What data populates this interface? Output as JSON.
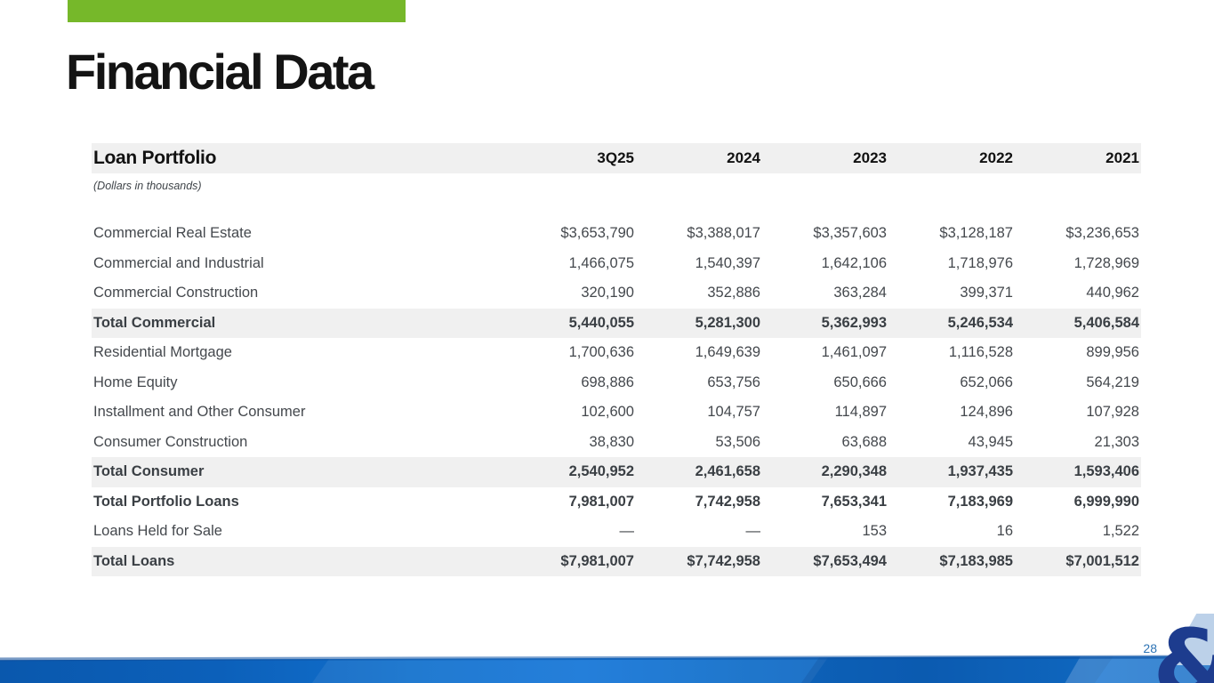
{
  "slide": {
    "title": "Financial Data",
    "page_number": "28",
    "ampersand": "&",
    "accent_green": "#76b82a",
    "footer_blue": "#1170cd",
    "logo_navy": "#1d3c8e",
    "page_number_blue": "#2e74b5"
  },
  "table": {
    "title": "Loan Portfolio",
    "subtitle": "(Dollars in thousands)",
    "columns": [
      "3Q25",
      "2024",
      "2023",
      "2022",
      "2021"
    ],
    "rows": [
      {
        "label": "Commercial Real Estate",
        "values": [
          "$3,653,790",
          "$3,388,017",
          "$3,357,603",
          "$3,128,187",
          "$3,236,653"
        ],
        "bold": false,
        "shaded": false
      },
      {
        "label": "Commercial and Industrial",
        "values": [
          "1,466,075",
          "1,540,397",
          "1,642,106",
          "1,718,976",
          "1,728,969"
        ],
        "bold": false,
        "shaded": false
      },
      {
        "label": "Commercial Construction",
        "values": [
          "320,190",
          "352,886",
          "363,284",
          "399,371",
          "440,962"
        ],
        "bold": false,
        "shaded": false
      },
      {
        "label": "Total Commercial",
        "values": [
          "5,440,055",
          "5,281,300",
          "5,362,993",
          "5,246,534",
          "5,406,584"
        ],
        "bold": true,
        "shaded": true
      },
      {
        "label": "Residential Mortgage",
        "values": [
          "1,700,636",
          "1,649,639",
          "1,461,097",
          "1,116,528",
          "899,956"
        ],
        "bold": false,
        "shaded": false
      },
      {
        "label": "Home Equity",
        "values": [
          "698,886",
          "653,756",
          "650,666",
          "652,066",
          "564,219"
        ],
        "bold": false,
        "shaded": false
      },
      {
        "label": "Installment and Other Consumer",
        "values": [
          "102,600",
          "104,757",
          "114,897",
          "124,896",
          "107,928"
        ],
        "bold": false,
        "shaded": false
      },
      {
        "label": "Consumer Construction",
        "values": [
          "38,830",
          "53,506",
          "63,688",
          "43,945",
          "21,303"
        ],
        "bold": false,
        "shaded": false
      },
      {
        "label": "Total Consumer",
        "values": [
          "2,540,952",
          "2,461,658",
          "2,290,348",
          "1,937,435",
          "1,593,406"
        ],
        "bold": true,
        "shaded": true
      },
      {
        "label": "Total Portfolio Loans",
        "values": [
          "7,981,007",
          "7,742,958",
          "7,653,341",
          "7,183,969",
          "6,999,990"
        ],
        "bold": true,
        "shaded": false
      },
      {
        "label": "Loans Held for Sale",
        "values": [
          "—",
          "—",
          "153",
          "16",
          "1,522"
        ],
        "bold": false,
        "shaded": false
      },
      {
        "label": "Total Loans",
        "values": [
          "$7,981,007",
          "$7,742,958",
          "$7,653,494",
          "$7,183,985",
          "$7,001,512"
        ],
        "bold": true,
        "shaded": true
      }
    ]
  }
}
